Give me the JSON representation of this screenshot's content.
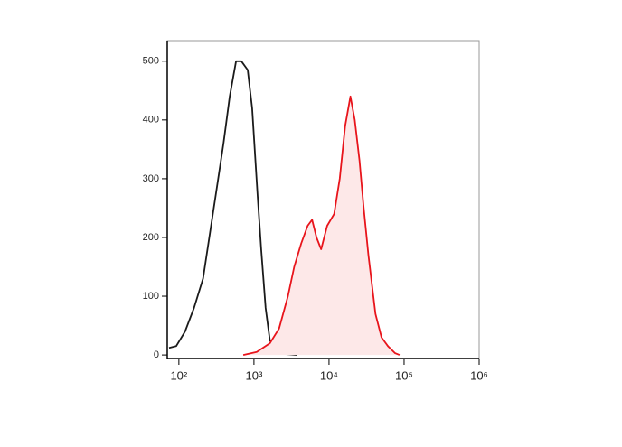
{
  "chart_data": {
    "type": "histogram-line",
    "xscale": "log",
    "xlim": [
      70,
      1000000
    ],
    "ylim": [
      -6,
      535
    ],
    "xticks": [
      {
        "value": 100,
        "label": "10²"
      },
      {
        "value": 1000,
        "label": "10³"
      },
      {
        "value": 10000,
        "label": "10⁴"
      },
      {
        "value": 100000,
        "label": "10⁵"
      },
      {
        "value": 1000000,
        "label": "10⁶"
      }
    ],
    "yticks": [
      0,
      100,
      200,
      300,
      400,
      500
    ],
    "series": [
      {
        "color": "#1a1a1a",
        "fill": "none",
        "x": [
          74,
          92,
          121,
          159,
          210,
          254,
          316,
          393,
          476,
          578,
          681,
          825,
          945,
          1120,
          1250,
          1430,
          1630,
          1930,
          2460,
          3700
        ],
        "values": [
          12,
          15,
          40,
          80,
          130,
          200,
          280,
          360,
          440,
          500,
          500,
          485,
          420,
          270,
          180,
          80,
          25,
          10,
          2,
          0
        ]
      },
      {
        "color": "#e8141b",
        "fill": "#fde8e8",
        "x": [
          720,
          1090,
          1630,
          2160,
          2840,
          3440,
          4270,
          5190,
          5950,
          6810,
          7840,
          9460,
          11700,
          13900,
          16400,
          19300,
          22000,
          25500,
          29000,
          33500,
          41600,
          50000,
          61000,
          75800,
          87000
        ],
        "values": [
          0,
          5,
          20,
          45,
          100,
          150,
          190,
          220,
          230,
          200,
          180,
          220,
          240,
          300,
          390,
          440,
          400,
          330,
          250,
          170,
          70,
          30,
          15,
          3,
          0
        ]
      }
    ]
  }
}
